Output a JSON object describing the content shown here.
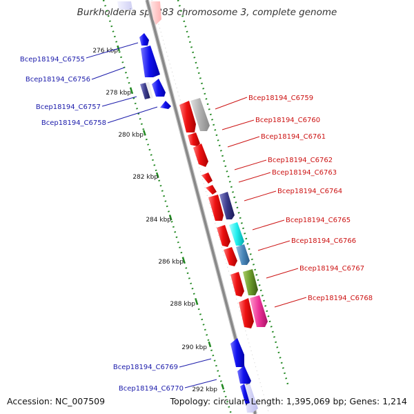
{
  "header": {
    "title": "Burkholderia sp. 383 chromosome 3, complete genome"
  },
  "footer": {
    "accession": "Accession: NC_007509",
    "summary": "Topology: circular; Length: 1,395,069 bp; Genes: 1,214"
  },
  "scale": {
    "ticks": [
      {
        "kbp": 276,
        "label": "276 kbp"
      },
      {
        "kbp": 278,
        "label": "278 kbp"
      },
      {
        "kbp": 280,
        "label": "280 kbp"
      },
      {
        "kbp": 282,
        "label": "282 kbp"
      },
      {
        "kbp": 284,
        "label": "284 kbp"
      },
      {
        "kbp": 286,
        "label": "286 kbp"
      },
      {
        "kbp": 288,
        "label": "288 kbp"
      },
      {
        "kbp": 290,
        "label": "290 kbp"
      },
      {
        "kbp": 292,
        "label": "292 kbp"
      }
    ]
  },
  "genes": {
    "counterclockwise": [
      {
        "label": "Bcep18194_C6755"
      },
      {
        "label": "Bcep18194_C6756"
      },
      {
        "label": "Bcep18194_C6757"
      },
      {
        "label": "Bcep18194_C6758"
      },
      {
        "label": "Bcep18194_C6769"
      },
      {
        "label": "Bcep18194_C6770"
      }
    ],
    "clockwise": [
      {
        "label": "Bcep18194_C6759"
      },
      {
        "label": "Bcep18194_C6760"
      },
      {
        "label": "Bcep18194_C6761"
      },
      {
        "label": "Bcep18194_C6762"
      },
      {
        "label": "Bcep18194_C6763"
      },
      {
        "label": "Bcep18194_C6764"
      },
      {
        "label": "Bcep18194_C6765"
      },
      {
        "label": "Bcep18194_C6766"
      },
      {
        "label": "Bcep18194_C6767"
      },
      {
        "label": "Bcep18194_C6768"
      }
    ]
  },
  "colors": {
    "forward_gene": "#ee1111",
    "reverse_gene": "#1111ee",
    "backbone": "#888888",
    "tick": "#228822",
    "label_cw": "#cc1111",
    "label_ccw": "#1a1aaa",
    "cog_gray": "#b0b0b0",
    "cog_navy": "#3a3a8a",
    "cog_cyan": "#22eeee",
    "cog_steelblue": "#4a88bb",
    "cog_olive": "#6a9a2a",
    "cog_pink": "#ee3399"
  }
}
